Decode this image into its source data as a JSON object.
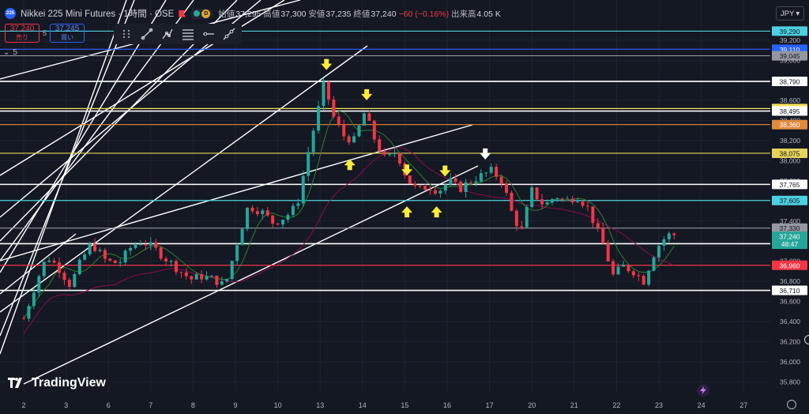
{
  "header": {
    "symbol_badge": "225",
    "title": "Nikkei 225 Mini Futures · 1時間 · OSE",
    "mode_badge": "D",
    "open_label": "始値",
    "open": "37,295",
    "high_label": "高値",
    "high": "37,300",
    "low_label": "安値",
    "low": "37,235",
    "close_label": "終値",
    "close": "37,240",
    "change": "−60 (−0.16%)",
    "volume_label": "出来高",
    "volume": "4.05 K",
    "icons": [
      "flag-icon",
      "status-dot-icon"
    ]
  },
  "trade": {
    "sell_price": "37,240",
    "sell_label": "売り",
    "spread": "5",
    "buy_price": "37,245",
    "buy_label": "買い"
  },
  "toolbar_icons": [
    "drag-handle-icon",
    "trendline-icon",
    "multi-point-line-icon",
    "fib-retracement-icon",
    "horizontal-ray-icon",
    "extended-line-icon"
  ],
  "collapse": {
    "label": "5"
  },
  "currency": "JPY",
  "logo": "TradingView",
  "colors": {
    "background": "#141823",
    "up": "#26a69a",
    "down": "#f23645",
    "ma_fast": "#2e7d32",
    "ma_slow": "#880e4f"
  },
  "chart_data": {
    "type": "candlestick",
    "timeframe": "1時間",
    "ylim": [
      35700,
      39600
    ],
    "x_ticks": [
      "2",
      "3",
      "6",
      "7",
      "8",
      "9",
      "10",
      "13",
      "14",
      "15",
      "16",
      "17",
      "20",
      "21",
      "22",
      "23",
      "24",
      "27"
    ],
    "y_ticks": [
      39200,
      39000,
      38800,
      38600,
      38400,
      38200,
      38000,
      37800,
      37600,
      37400,
      37200,
      37000,
      36800,
      36600,
      36400,
      36200,
      36000,
      35800
    ],
    "current_price": 37240,
    "countdown": "48:47",
    "price_levels": [
      {
        "price": 39290,
        "label": "39,290",
        "color": "#4dd0e1"
      },
      {
        "price": 39110,
        "label": "39,110",
        "color": "#2962ff"
      },
      {
        "price": 39045,
        "label": "39,045",
        "color": "#9598a1"
      },
      {
        "price": 38790,
        "label": "38,790",
        "color": "#ffffff"
      },
      {
        "price": 38520,
        "label": "38,520",
        "color": "#f7e05a"
      },
      {
        "price": 38495,
        "label": "38,495",
        "color": "#ffffff"
      },
      {
        "price": 38360,
        "label": "38,360",
        "color": "#e08a3c"
      },
      {
        "price": 38075,
        "label": "38,075",
        "color": "#e6d35a"
      },
      {
        "price": 37765,
        "label": "37,765",
        "color": "#ffffff"
      },
      {
        "price": 37605,
        "label": "37,605",
        "color": "#4dd0e1"
      },
      {
        "price": 37330,
        "label": "37,330",
        "color": "#9598a1"
      },
      {
        "price": 37175,
        "label": "37,175",
        "color": "#ffffff"
      },
      {
        "price": 36960,
        "label": "36,960",
        "color": "#f23645"
      },
      {
        "price": 36710,
        "label": "36,710",
        "color": "#ffffff"
      }
    ],
    "close_path": [
      {
        "x": 0,
        "y": 36430
      },
      {
        "x": 0.3,
        "y": 36800
      },
      {
        "x": 0.55,
        "y": 37050
      },
      {
        "x": 0.8,
        "y": 36950
      },
      {
        "x": 1.1,
        "y": 36760
      },
      {
        "x": 1.35,
        "y": 37000
      },
      {
        "x": 1.6,
        "y": 37180
      },
      {
        "x": 1.95,
        "y": 37000
      },
      {
        "x": 2.25,
        "y": 36980
      },
      {
        "x": 2.55,
        "y": 37150
      },
      {
        "x": 2.8,
        "y": 37200
      },
      {
        "x": 3.1,
        "y": 37120
      },
      {
        "x": 3.4,
        "y": 37010
      },
      {
        "x": 3.7,
        "y": 36900
      },
      {
        "x": 3.95,
        "y": 36820
      },
      {
        "x": 4.2,
        "y": 36850
      },
      {
        "x": 4.5,
        "y": 36820
      },
      {
        "x": 4.75,
        "y": 36750
      },
      {
        "x": 5.05,
        "y": 37200
      },
      {
        "x": 5.3,
        "y": 37550
      },
      {
        "x": 5.6,
        "y": 37500
      },
      {
        "x": 5.9,
        "y": 37380
      },
      {
        "x": 6.2,
        "y": 37450
      },
      {
        "x": 6.45,
        "y": 37550
      },
      {
        "x": 6.75,
        "y": 38150
      },
      {
        "x": 6.95,
        "y": 38500
      },
      {
        "x": 7.1,
        "y": 38780
      },
      {
        "x": 7.3,
        "y": 38450
      },
      {
        "x": 7.55,
        "y": 38250
      },
      {
        "x": 7.8,
        "y": 38200
      },
      {
        "x": 8.05,
        "y": 38480
      },
      {
        "x": 8.3,
        "y": 38200
      },
      {
        "x": 8.55,
        "y": 38000
      },
      {
        "x": 8.8,
        "y": 38100
      },
      {
        "x": 9.05,
        "y": 37820
      },
      {
        "x": 9.3,
        "y": 37700
      },
      {
        "x": 9.55,
        "y": 37750
      },
      {
        "x": 9.8,
        "y": 37700
      },
      {
        "x": 10.05,
        "y": 37800
      },
      {
        "x": 10.3,
        "y": 37720
      },
      {
        "x": 10.55,
        "y": 37800
      },
      {
        "x": 10.8,
        "y": 37850
      },
      {
        "x": 11.05,
        "y": 37900
      },
      {
        "x": 11.3,
        "y": 37800
      },
      {
        "x": 11.55,
        "y": 37450
      },
      {
        "x": 11.75,
        "y": 37300
      },
      {
        "x": 12.0,
        "y": 37700
      },
      {
        "x": 12.3,
        "y": 37550
      },
      {
        "x": 12.55,
        "y": 37650
      },
      {
        "x": 12.8,
        "y": 37600
      },
      {
        "x": 13.05,
        "y": 37650
      },
      {
        "x": 13.3,
        "y": 37550
      },
      {
        "x": 13.55,
        "y": 37300
      },
      {
        "x": 13.75,
        "y": 37100
      },
      {
        "x": 13.9,
        "y": 36850
      },
      {
        "x": 14.15,
        "y": 36950
      },
      {
        "x": 14.4,
        "y": 36900
      },
      {
        "x": 14.65,
        "y": 36800
      },
      {
        "x": 14.85,
        "y": 37050
      },
      {
        "x": 15.05,
        "y": 37200
      },
      {
        "x": 15.3,
        "y": 37280
      },
      {
        "x": 15.45,
        "y": 37240
      }
    ],
    "annotations": [
      {
        "type": "arrow-down",
        "x": 7.15,
        "y": 38950,
        "color": "#ffeb3b"
      },
      {
        "type": "arrow-down",
        "x": 8.1,
        "y": 38650,
        "color": "#ffeb3b"
      },
      {
        "type": "arrow-up",
        "x": 7.7,
        "y": 37970,
        "color": "#ffeb3b"
      },
      {
        "type": "arrow-down",
        "x": 9.05,
        "y": 37900,
        "color": "#ffeb3b"
      },
      {
        "type": "arrow-down",
        "x": 9.95,
        "y": 37890,
        "color": "#ffeb3b"
      },
      {
        "type": "arrow-up",
        "x": 9.05,
        "y": 37500,
        "color": "#ffeb3b"
      },
      {
        "type": "arrow-up",
        "x": 9.75,
        "y": 37500,
        "color": "#ffeb3b"
      },
      {
        "type": "arrow-down",
        "x": 10.9,
        "y": 38060,
        "color": "#ffffff"
      }
    ]
  }
}
